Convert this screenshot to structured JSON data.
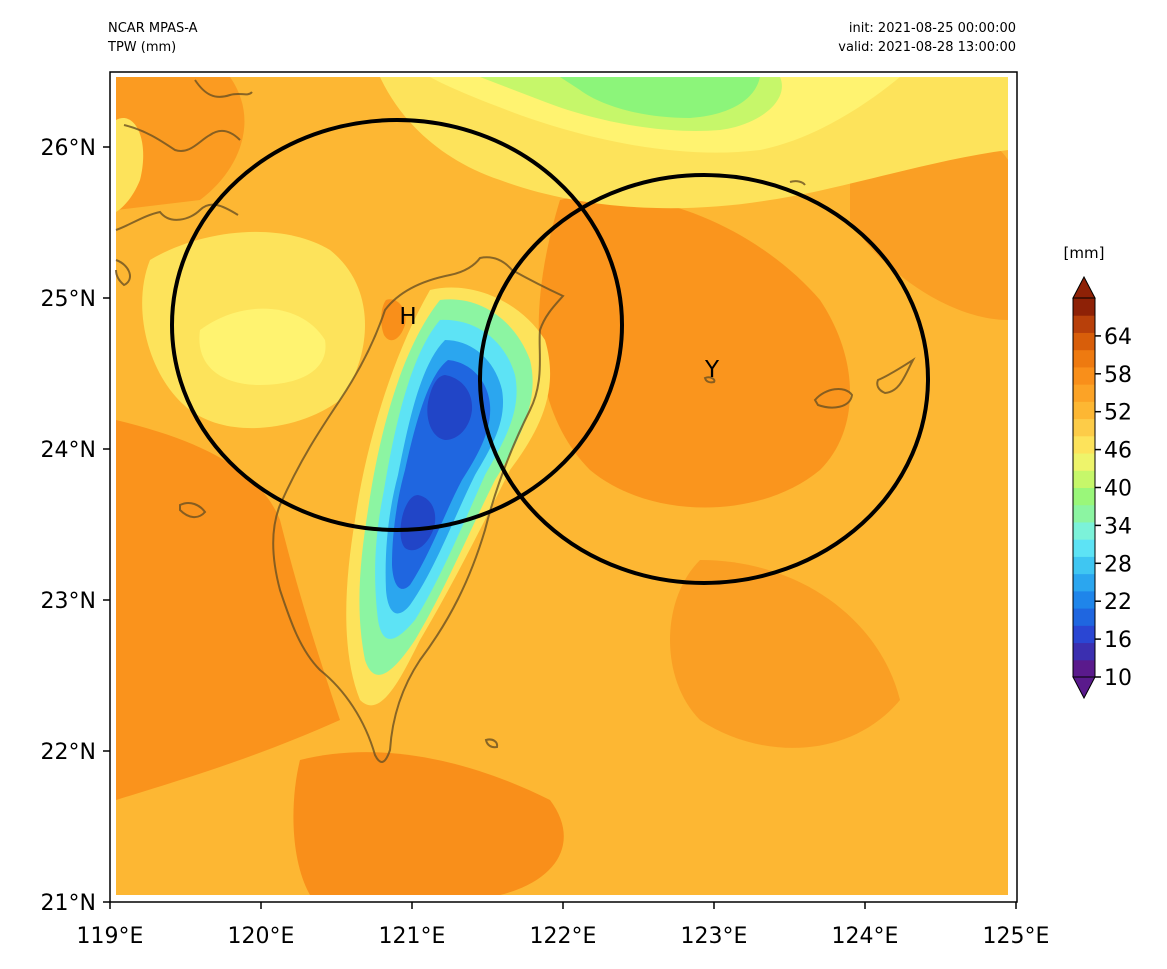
{
  "header": {
    "model": "NCAR MPAS-A",
    "variable": "TPW (mm)",
    "init": "init: 2021-08-25 00:00:00",
    "valid": "valid: 2021-08-28 13:00:00"
  },
  "map": {
    "lon_range": [
      119,
      125
    ],
    "lat_range": [
      21,
      26.5
    ],
    "lon_ticks": [
      "119°E",
      "120°E",
      "121°E",
      "122°E",
      "123°E",
      "124°E",
      "125°E"
    ],
    "lat_ticks": [
      "21°N",
      "22°N",
      "23°N",
      "24°N",
      "25°N",
      "26°N"
    ],
    "markers": [
      {
        "label": "H",
        "lon": 120.95,
        "lat": 24.85
      },
      {
        "label": "Y",
        "lon": 122.95,
        "lat": 24.47
      }
    ],
    "circles": [
      {
        "center_lon": 120.92,
        "center_lat": 24.83
      },
      {
        "center_lon": 122.95,
        "center_lat": 24.47
      }
    ],
    "field_colors": {
      "background": "#fdb733",
      "dark_orange": "#f98f1a",
      "light_yellow": "#fde35b",
      "pale_yellow": "#fff370",
      "green": "#8cf57a",
      "blue": "#1f66e0",
      "deep_blue": "#2145c7",
      "cyan": "#5de3f5"
    }
  },
  "colorbar": {
    "unit": "[mm]",
    "ticks": [
      "10",
      "16",
      "22",
      "28",
      "34",
      "40",
      "46",
      "52",
      "58",
      "64"
    ],
    "range": [
      10,
      70
    ],
    "colors": [
      "#5a1a8c",
      "#3b2fb0",
      "#2a46d3",
      "#1f66e0",
      "#1f85ea",
      "#2ba6ef",
      "#3fc6f2",
      "#5de3f5",
      "#7cf2d9",
      "#8cf5a2",
      "#9af77a",
      "#c6f76a",
      "#eef46b",
      "#fde35b",
      "#fdcc48",
      "#fdb733",
      "#fca326",
      "#f98f1a",
      "#ee7a10",
      "#d85e0a",
      "#b8400a",
      "#8e2106"
    ]
  }
}
